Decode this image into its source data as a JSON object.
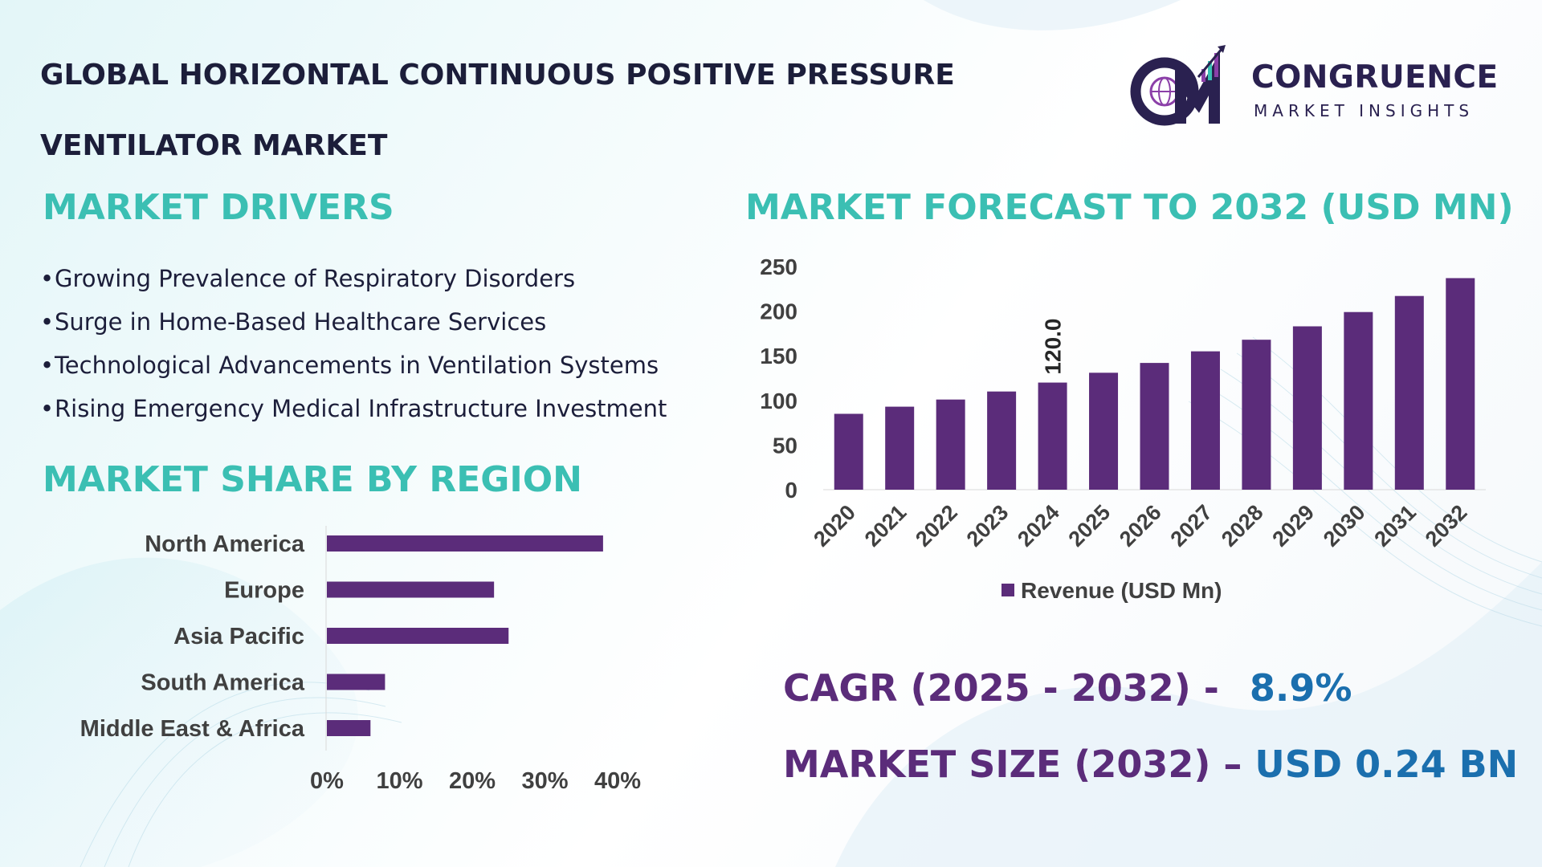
{
  "header": {
    "title_line1": "GLOBAL HORIZONTAL CONTINUOUS POSITIVE PRESSURE",
    "title_line2": "VENTILATOR MARKET"
  },
  "logo": {
    "monogram": "CM",
    "name": "CONGRUENCE",
    "tagline": "MARKET INSIGHTS",
    "icon": "globe-chart-icon",
    "color": "#2a2150",
    "accent": "#8b3fa8"
  },
  "drivers": {
    "heading": "MARKET DRIVERS",
    "bullet": "•",
    "items": [
      "Growing Prevalence of Respiratory Disorders",
      "Surge in Home-Based Healthcare Services",
      "Technological Advancements in Ventilation Systems",
      "Rising Emergency Medical Infrastructure Investment"
    ]
  },
  "region": {
    "heading": "MARKET SHARE BY REGION"
  },
  "forecast": {
    "heading": "MARKET FORECAST TO 2032 (USD MN)"
  },
  "stats": {
    "cagr_label": "CAGR (2025 - 2032) -",
    "cagr_value": "8.9%",
    "size_label": "MARKET SIZE (2032) –",
    "size_value": "USD 0.24 BN"
  },
  "colors": {
    "heading": "#3bbfb3",
    "bar": "#5b2c7a",
    "title": "#1c1e3a",
    "stat_label": "#5b2c7a",
    "stat_value": "#1b6fae",
    "axis_text": "#404040"
  },
  "chart_data": [
    {
      "id": "forecast",
      "type": "bar",
      "title": "MARKET FORECAST TO 2032 (USD MN)",
      "categories": [
        "2020",
        "2021",
        "2022",
        "2023",
        "2024",
        "2025",
        "2026",
        "2027",
        "2028",
        "2029",
        "2030",
        "2031",
        "2032"
      ],
      "series": [
        {
          "name": "Revenue (USD Mn)",
          "values": [
            85,
            93,
            101,
            110,
            120.0,
            131,
            142,
            155,
            168,
            183,
            199,
            217,
            237
          ]
        }
      ],
      "data_labels": [
        {
          "index": 4,
          "text": "120.0"
        }
      ],
      "yticks": [
        0,
        50,
        100,
        150,
        200,
        250
      ],
      "ylim": [
        0,
        250
      ],
      "legend": "bottom",
      "xlabel": "",
      "ylabel": ""
    },
    {
      "id": "region",
      "type": "bar",
      "orientation": "horizontal",
      "title": "MARKET SHARE BY REGION",
      "categories": [
        "North America",
        "Europe",
        "Asia Pacific",
        "South America",
        "Middle East & Africa"
      ],
      "values": [
        38,
        23,
        25,
        8,
        6
      ],
      "xticks": [
        "0%",
        "10%",
        "20%",
        "30%",
        "40%"
      ],
      "xlim": [
        0,
        40
      ],
      "unit": "%"
    }
  ]
}
